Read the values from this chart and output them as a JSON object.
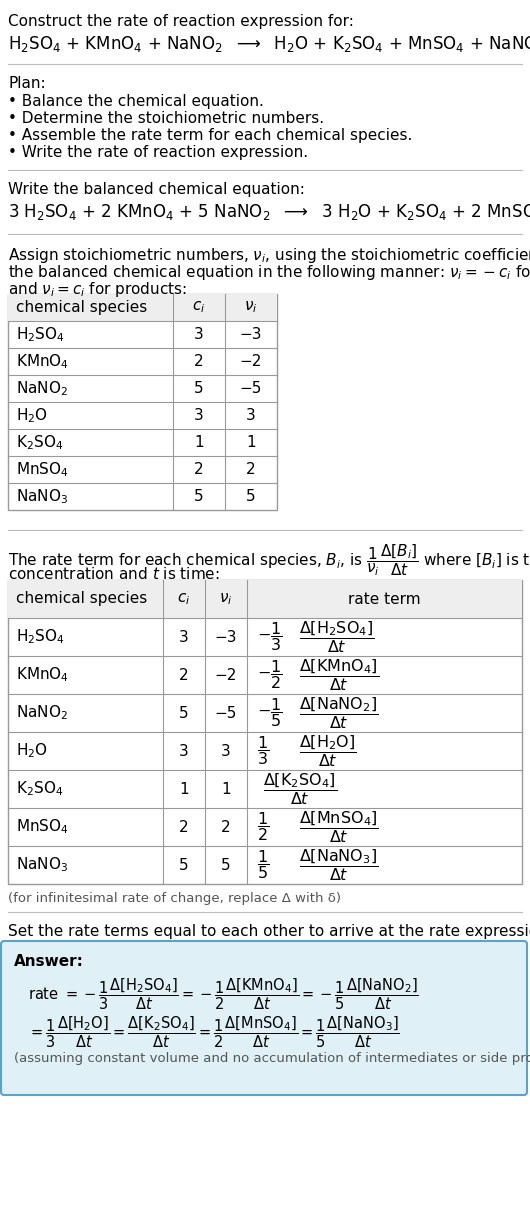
{
  "title_line1": "Construct the rate of reaction expression for:",
  "bg_color": "#ffffff",
  "text_color": "#000000",
  "gray_color": "#555555",
  "separator_color": "#bbbbbb",
  "table_border_color": "#999999",
  "table_header_bg": "#eeeeee",
  "answer_box_color": "#dff0f7",
  "answer_box_border": "#5ba3c9",
  "chem_map": {
    "H_2SO_4": "H$_2$SO$_4$",
    "KMnO_4": "KMnO$_4$",
    "NaNO_2": "NaNO$_2$",
    "H_2O": "H$_2$O",
    "K_2SO_4": "K$_2$SO$_4$",
    "MnSO_4": "MnSO$_4$",
    "NaNO_3": "NaNO$_3$"
  },
  "table1_data": [
    [
      "H_2SO_4",
      "3",
      "−3"
    ],
    [
      "KMnO_4",
      "2",
      "−2"
    ],
    [
      "NaNO_2",
      "5",
      "−5"
    ],
    [
      "H_2O",
      "3",
      "3"
    ],
    [
      "K_2SO_4",
      "1",
      "1"
    ],
    [
      "MnSO_4",
      "2",
      "2"
    ],
    [
      "NaNO_3",
      "5",
      "5"
    ]
  ],
  "table2_data": [
    [
      "H_2SO_4",
      "3",
      "−3",
      "-",
      "1",
      "3",
      "H_2SO_4"
    ],
    [
      "KMnO_4",
      "2",
      "−2",
      "-",
      "1",
      "2",
      "KMnO_4"
    ],
    [
      "NaNO_2",
      "5",
      "−5",
      "-",
      "1",
      "5",
      "NaNO_2"
    ],
    [
      "H_2O",
      "3",
      "3",
      "+",
      "1",
      "3",
      "H_2O"
    ],
    [
      "K_2SO_4",
      "1",
      "1",
      "+",
      "",
      "1",
      "K_2SO_4"
    ],
    [
      "MnSO_4",
      "2",
      "2",
      "+",
      "1",
      "2",
      "MnSO_4"
    ],
    [
      "NaNO_3",
      "5",
      "5",
      "+",
      "1",
      "5",
      "NaNO_3"
    ]
  ]
}
